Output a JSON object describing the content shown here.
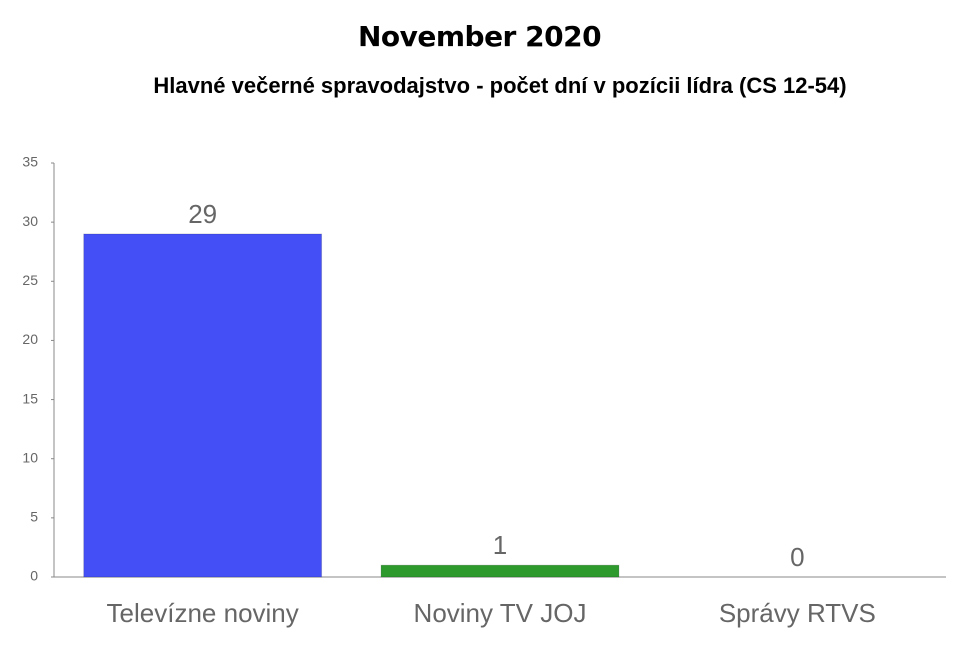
{
  "chart_data": {
    "type": "bar",
    "title": "November 2020",
    "subtitle": "Hlavné večerné spravodajstvo - počet dní v pozícii lídra (CS 12-54)",
    "categories": [
      "Televízne noviny",
      "Noviny TV JOJ",
      "Správy RTVS"
    ],
    "values": [
      29,
      1,
      0
    ],
    "colors": [
      "#4450f5",
      "#2e9a2e",
      "#e53935"
    ],
    "ylim": [
      0,
      35
    ],
    "yticks": [
      0,
      5,
      10,
      15,
      20,
      25,
      30,
      35
    ],
    "grid": false
  }
}
